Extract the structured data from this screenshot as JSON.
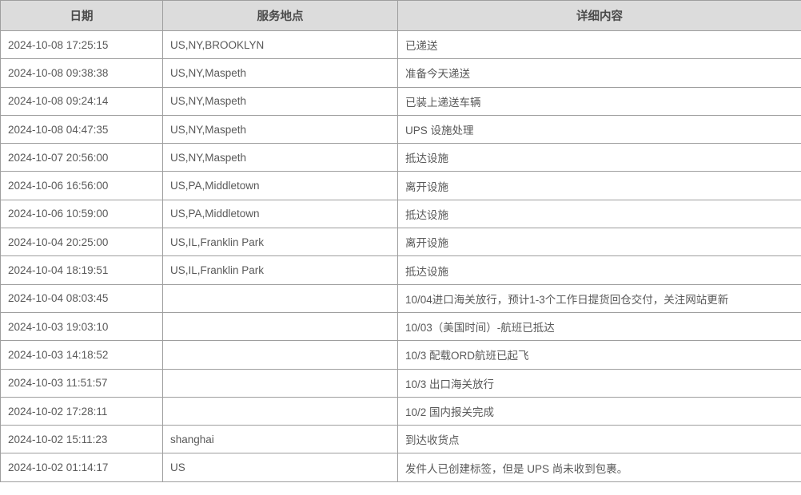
{
  "table": {
    "columns": [
      {
        "key": "date",
        "label": "日期"
      },
      {
        "key": "location",
        "label": "服务地点"
      },
      {
        "key": "detail",
        "label": "详细内容"
      }
    ],
    "rows": [
      {
        "date": "2024-10-08 17:25:15",
        "location": "US,NY,BROOKLYN",
        "detail": "已递送"
      },
      {
        "date": "2024-10-08 09:38:38",
        "location": "US,NY,Maspeth",
        "detail": "准备今天递送"
      },
      {
        "date": "2024-10-08 09:24:14",
        "location": "US,NY,Maspeth",
        "detail": "已装上递送车辆"
      },
      {
        "date": "2024-10-08 04:47:35",
        "location": "US,NY,Maspeth",
        "detail": "UPS 设施处理"
      },
      {
        "date": "2024-10-07 20:56:00",
        "location": "US,NY,Maspeth",
        "detail": "抵达设施"
      },
      {
        "date": "2024-10-06 16:56:00",
        "location": "US,PA,Middletown",
        "detail": "离开设施"
      },
      {
        "date": "2024-10-06 10:59:00",
        "location": "US,PA,Middletown",
        "detail": "抵达设施"
      },
      {
        "date": "2024-10-04 20:25:00",
        "location": "US,IL,Franklin Park",
        "detail": "离开设施"
      },
      {
        "date": "2024-10-04 18:19:51",
        "location": "US,IL,Franklin Park",
        "detail": "抵达设施"
      },
      {
        "date": "2024-10-04 08:03:45",
        "location": "",
        "detail": "10/04进口海关放行，预计1-3个工作日提货回仓交付，关注网站更新"
      },
      {
        "date": "2024-10-03 19:03:10",
        "location": "",
        "detail": "10/03（美国时间）-航班已抵达"
      },
      {
        "date": "2024-10-03 14:18:52",
        "location": "",
        "detail": "10/3 配载ORD航班已起飞"
      },
      {
        "date": "2024-10-03 11:51:57",
        "location": "",
        "detail": "10/3 出口海关放行"
      },
      {
        "date": "2024-10-02 17:28:11",
        "location": "",
        "detail": "10/2 国内报关完成"
      },
      {
        "date": "2024-10-02 15:11:23",
        "location": "shanghai",
        "detail": "到达收货点"
      },
      {
        "date": "2024-10-02 01:14:17",
        "location": "US",
        "detail": "发件人已创建标签，但是 UPS 尚未收到包裹。"
      }
    ]
  },
  "colors": {
    "header_bg": "#dcdcdc",
    "border": "#9e9e9e",
    "header_text": "#4a4a4a",
    "body_text": "#595959",
    "row_bg": "#ffffff"
  }
}
